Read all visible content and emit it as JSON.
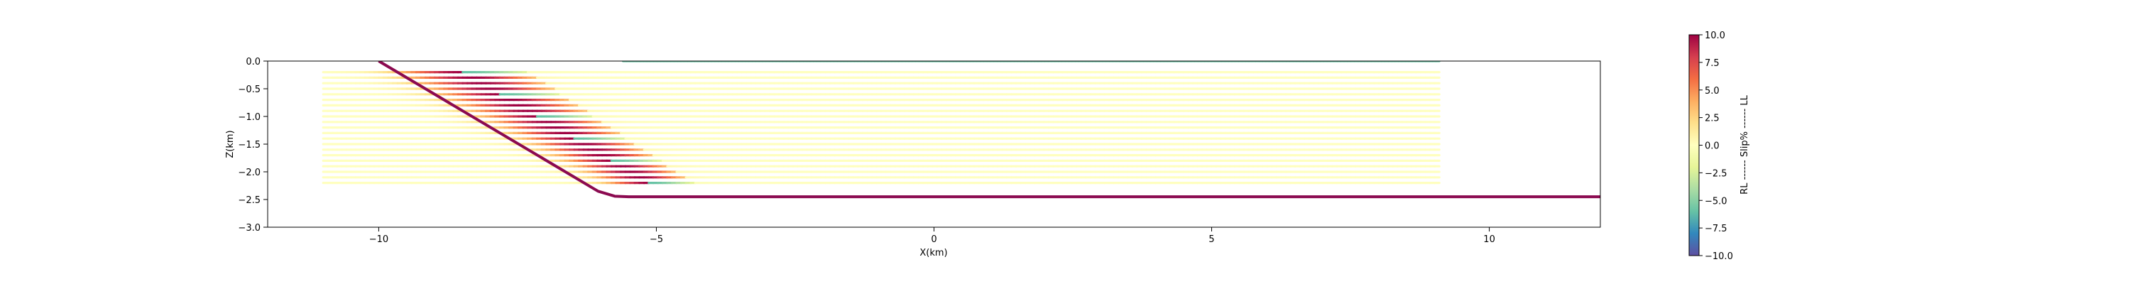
{
  "chart_data": {
    "type": "line",
    "title": "",
    "xlabel": "X(km)",
    "ylabel": "Z(km)",
    "xlim": [
      -12,
      12
    ],
    "ylim": [
      -3.0,
      0.0
    ],
    "xticks": [
      -10,
      -5,
      0,
      5,
      10
    ],
    "xtick_labels": [
      "−10",
      "−5",
      "0",
      "5",
      "10"
    ],
    "yticks": [
      0.0,
      -0.5,
      -1.0,
      -1.5,
      -2.0,
      -2.5,
      -3.0
    ],
    "ytick_labels": [
      "0.0",
      "−0.5",
      "−1.0",
      "−1.5",
      "−2.0",
      "−2.5",
      "−3.0"
    ],
    "grid": false,
    "fault": {
      "color": "#8b0a50",
      "x": [
        -10.0,
        -6.05,
        -5.75,
        -5.5,
        12.0
      ],
      "y": [
        0.0,
        -2.35,
        -2.44,
        -2.45,
        -2.45
      ]
    },
    "layers": {
      "x_start": -11.0,
      "x_end": 9.1,
      "depths": [
        -0.2,
        -0.3,
        -0.4,
        -0.5,
        -0.6,
        -0.7,
        -0.8,
        -0.9,
        -1.0,
        -1.1,
        -1.2,
        -1.3,
        -1.4,
        -1.5,
        -1.6,
        -1.7,
        -1.8,
        -1.9,
        -2.0,
        -2.1,
        -2.2
      ],
      "shallow_depth": 0.0
    },
    "colorbar": {
      "colormap": "Spectral",
      "min": -10.0,
      "max": 10.0,
      "ticks": [
        10.0,
        7.5,
        5.0,
        2.5,
        0.0,
        -2.5,
        -5.0,
        -7.5,
        -10.0
      ],
      "tick_labels": [
        "10.0",
        "7.5",
        "5.0",
        "2.5",
        "0.0",
        "−2.5",
        "−5.0",
        "−7.5",
        "−10.0"
      ],
      "label": "RL ------ Slip% ------ LL"
    }
  }
}
